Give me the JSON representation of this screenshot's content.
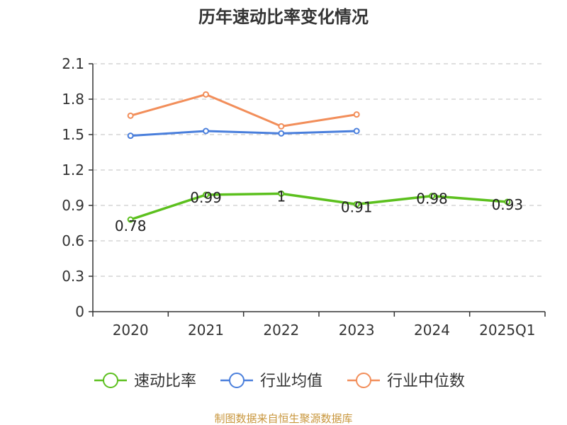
{
  "chart_data": {
    "type": "line",
    "title": "历年速动比率变化情况",
    "categories": [
      "2020",
      "2021",
      "2022",
      "2023",
      "2024",
      "2025Q1"
    ],
    "ylim": [
      0,
      2.1
    ],
    "yticks": [
      "0",
      "0.3",
      "0.6",
      "0.9",
      "1.2",
      "1.5",
      "1.8",
      "2.1"
    ],
    "grid": true,
    "legend_position": "bottom",
    "series": [
      {
        "name": "速动比率",
        "color": "#5cc01e",
        "values": [
          0.78,
          0.99,
          1.0,
          0.91,
          0.98,
          0.93
        ],
        "labels": [
          "0.78",
          "0.99",
          "1",
          "0.91",
          "0.98",
          "0.93"
        ]
      },
      {
        "name": "行业均值",
        "color": "#4a7fdc",
        "values": [
          1.49,
          1.53,
          1.51,
          1.53,
          null,
          null
        ]
      },
      {
        "name": "行业中位数",
        "color": "#f28e5a",
        "values": [
          1.66,
          1.84,
          1.57,
          1.67,
          null,
          null
        ]
      }
    ]
  },
  "source": "制图数据来自恒生聚源数据库"
}
